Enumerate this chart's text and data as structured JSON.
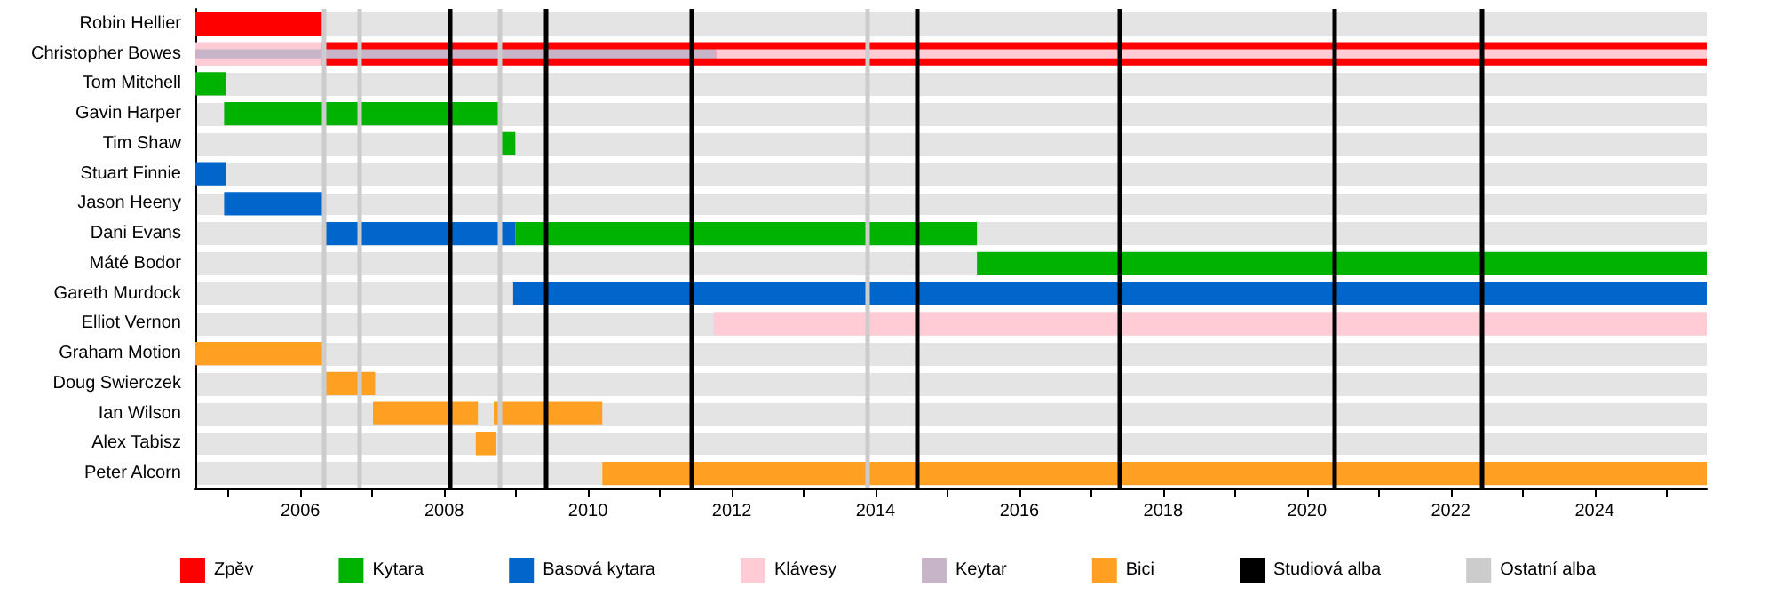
{
  "chart_data": {
    "type": "bar",
    "orientation": "horizontal",
    "categories": [
      "Robin Hellier",
      "Christopher Bowes",
      "Tom Mitchell",
      "Gavin Harper",
      "Tim Shaw",
      "Stuart Finnie",
      "Jason Heeny",
      "Dani Evans",
      "Máté Bodor",
      "Gareth Murdock",
      "Elliot Vernon",
      "Graham Motion",
      "Doug Swierczek",
      "Ian Wilson",
      "Alex Tabisz",
      "Peter Alcorn"
    ],
    "series": [
      {
        "name": "Zpěv",
        "color": "#ff0000",
        "base": [
          2004.54,
          2006.3,
          null,
          null,
          null,
          null,
          null,
          null,
          null,
          null,
          null,
          null,
          null,
          null,
          null,
          null
        ],
        "values": [
          1.76,
          19.26,
          null,
          null,
          null,
          null,
          null,
          null,
          null,
          null,
          null,
          null,
          null,
          null,
          null,
          null
        ]
      },
      {
        "name": "Kytara",
        "color": "#00b300",
        "base": [
          null,
          null,
          2004.54,
          2004.94,
          2008.77,
          null,
          null,
          2008.99,
          2015.41,
          null,
          null,
          null,
          null,
          null,
          null,
          null
        ],
        "values": [
          null,
          null,
          0.42,
          3.85,
          0.22,
          null,
          null,
          6.42,
          10.15,
          null,
          null,
          null,
          null,
          null,
          null,
          null
        ]
      },
      {
        "name": "Basová kytara",
        "color": "#0066cc",
        "base": [
          null,
          null,
          null,
          null,
          null,
          2004.54,
          2004.94,
          2006.35,
          null,
          2008.96,
          null,
          null,
          null,
          null,
          null,
          null
        ],
        "values": [
          null,
          null,
          null,
          null,
          null,
          0.42,
          1.41,
          2.64,
          null,
          16.6,
          null,
          null,
          null,
          null,
          null,
          null
        ]
      },
      {
        "name": "Klávesy",
        "color": "#ffccd5",
        "base": [
          null,
          2004.54,
          null,
          null,
          null,
          null,
          null,
          null,
          null,
          null,
          2011.75,
          null,
          null,
          null,
          null,
          null
        ],
        "values": [
          null,
          1.76,
          null,
          null,
          null,
          null,
          null,
          null,
          null,
          null,
          13.81,
          null,
          null,
          null,
          null,
          null
        ]
      },
      {
        "name": "Keytar",
        "color": "#c8b4c8",
        "base": [
          null,
          2004.54,
          null,
          null,
          null,
          null,
          null,
          null,
          null,
          null,
          null,
          null,
          null,
          null,
          null,
          null
        ],
        "values": [
          null,
          7.24,
          null,
          null,
          null,
          null,
          null,
          null,
          null,
          null,
          null,
          null,
          null,
          null,
          null,
          null
        ]
      },
      {
        "color": "#ffccd5",
        "base": [
          null,
          2011.78,
          null,
          null,
          null,
          null,
          null,
          null,
          null,
          null,
          null,
          null,
          null,
          null,
          null,
          null
        ],
        "values": [
          null,
          13.78,
          null,
          null,
          null,
          null,
          null,
          null,
          null,
          null,
          null,
          null,
          null,
          null,
          null,
          null
        ]
      },
      {
        "name": "Bici",
        "color": "#ffa022",
        "base": [
          null,
          null,
          null,
          null,
          null,
          null,
          null,
          null,
          null,
          null,
          null,
          2004.54,
          2006.35,
          2007.01,
          2008.44,
          2010.2
        ],
        "values": [
          null,
          null,
          null,
          null,
          null,
          null,
          null,
          null,
          null,
          null,
          null,
          1.81,
          0.69,
          1.46,
          0.28,
          15.36
        ]
      },
      {
        "color": "#ffa022",
        "base": [
          null,
          null,
          null,
          null,
          null,
          null,
          null,
          null,
          null,
          null,
          null,
          null,
          null,
          2008.69,
          null,
          null
        ],
        "values": [
          null,
          null,
          null,
          null,
          null,
          null,
          null,
          null,
          null,
          null,
          null,
          null,
          null,
          1.51,
          null,
          null
        ]
      }
    ],
    "ref_lines": [
      {
        "axis": "x",
        "value": 2008.07,
        "label": "Studiová alba",
        "color": "#000000"
      },
      {
        "axis": "x",
        "value": 2009.41,
        "color": "#000000"
      },
      {
        "axis": "x",
        "value": 2011.43,
        "color": "#000000"
      },
      {
        "axis": "x",
        "value": 2014.57,
        "color": "#000000"
      },
      {
        "axis": "x",
        "value": 2017.38,
        "color": "#000000"
      },
      {
        "axis": "x",
        "value": 2020.37,
        "color": "#000000"
      },
      {
        "axis": "x",
        "value": 2022.44,
        "color": "#000000"
      },
      {
        "axis": "x",
        "value": 2006.32,
        "label": "Ostatní alba",
        "color": "#cccccc"
      },
      {
        "axis": "x",
        "value": 2006.81,
        "color": "#cccccc"
      },
      {
        "axis": "x",
        "value": 2008.77,
        "color": "#cccccc"
      },
      {
        "axis": "x",
        "value": 2013.88,
        "color": "#cccccc"
      }
    ],
    "xlim": [
      2004.54,
      2025.56
    ],
    "xticks": [
      {
        "value": 2005,
        "label": null
      },
      2006,
      {
        "value": 2007,
        "label": null
      },
      2008,
      {
        "value": 2009,
        "label": null
      },
      2010,
      {
        "value": 2011,
        "label": null
      },
      2012,
      {
        "value": 2013,
        "label": null
      },
      2014,
      {
        "value": 2015,
        "label": null
      },
      2016,
      {
        "value": 2017,
        "label": null
      },
      2018,
      {
        "value": 2019,
        "label": null
      },
      2020,
      {
        "value": 2021,
        "label": null
      },
      2022,
      {
        "value": 2023,
        "label": null
      },
      2024,
      {
        "value": 2025,
        "label": null
      }
    ],
    "grid": "y",
    "legend": "bottom"
  }
}
